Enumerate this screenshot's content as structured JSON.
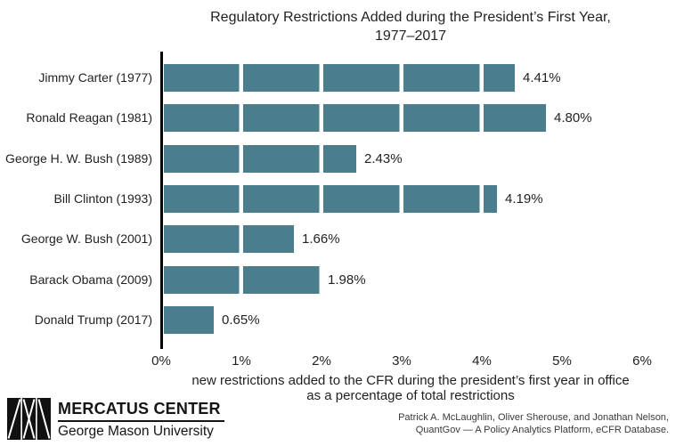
{
  "title": {
    "line1": "Regulatory Restrictions Added during the President’s First Year,",
    "line2": "1977–2017"
  },
  "chart_data": {
    "type": "bar",
    "orientation": "horizontal",
    "title": "Regulatory Restrictions Added during the President’s First Year, 1977–2017",
    "categories": [
      "Jimmy Carter (1977)",
      "Ronald Reagan (1981)",
      "George H. W. Bush (1989)",
      "Bill Clinton (1993)",
      "George W. Bush (2001)",
      "Barack Obama (2009)",
      "Donald Trump (2017)"
    ],
    "values": [
      4.41,
      4.8,
      2.43,
      4.19,
      1.66,
      1.98,
      0.65
    ],
    "value_labels": [
      "4.41%",
      "4.80%",
      "2.43%",
      "4.19%",
      "1.66%",
      "1.98%",
      "0.65%"
    ],
    "x_ticks": [
      "0%",
      "1%",
      "2%",
      "3%",
      "4%",
      "5%",
      "6%"
    ],
    "xlim": [
      0,
      6
    ],
    "grid": "off",
    "segment_interval_pct": 1,
    "bar_color": "#4a7e8c",
    "xlabel_line1": "new restrictions added to the CFR during the president’s first year in office",
    "xlabel_line2": "as a percentage of total restrictions"
  },
  "footer": {
    "org_name": "MERCATUS CENTER",
    "org_sub": "George Mason University",
    "logo_icon": "mercatus-logo",
    "credit_line1": "Patrick A. McLaughlin, Oliver Sherouse, and Jonathan Nelson,",
    "credit_line2": "QuantGov — A Policy Analytics Platform, eCFR Database."
  }
}
